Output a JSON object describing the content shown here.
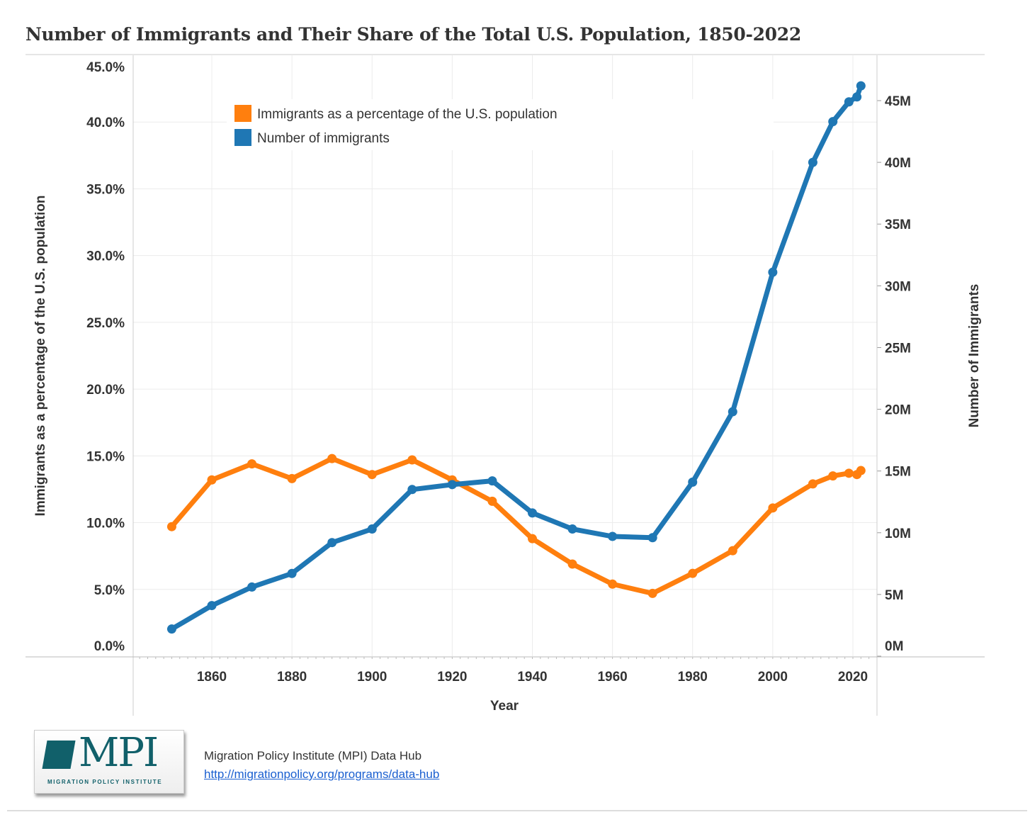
{
  "chart_data": {
    "type": "line",
    "title": "Number of Immigrants and Their Share of the Total U.S. Population, 1850-2022",
    "xlabel": "Year",
    "ylabel_left": "Immigrants as a percentage of the U.S. population",
    "ylabel_right": "Number of Immigrants",
    "x": [
      1850,
      1860,
      1870,
      1880,
      1890,
      1900,
      1910,
      1920,
      1930,
      1940,
      1950,
      1960,
      1970,
      1980,
      1990,
      2000,
      2010,
      2015,
      2019,
      2021,
      2022
    ],
    "series": [
      {
        "name": "Immigrants as a percentage of the U.S. population",
        "axis": "left",
        "color": "#ff7f0e",
        "values": [
          9.7,
          13.2,
          14.4,
          13.3,
          14.8,
          13.6,
          14.7,
          13.2,
          11.6,
          8.8,
          6.9,
          5.4,
          4.7,
          6.2,
          7.9,
          11.1,
          12.9,
          13.5,
          13.7,
          13.6,
          13.9
        ]
      },
      {
        "name": "Number of immigrants",
        "axis": "right",
        "color": "#1f77b4",
        "values": [
          2.2,
          4.1,
          5.6,
          6.7,
          9.2,
          10.3,
          13.5,
          13.9,
          14.2,
          11.6,
          10.3,
          9.7,
          9.6,
          14.1,
          19.8,
          31.1,
          40.0,
          43.3,
          44.9,
          45.3,
          46.2
        ]
      }
    ],
    "x_ticks": [
      "1860",
      "1880",
      "1900",
      "1920",
      "1940",
      "1960",
      "1980",
      "2000",
      "2020"
    ],
    "y_left_ticks": [
      "0.0%",
      "5.0%",
      "10.0%",
      "15.0%",
      "20.0%",
      "25.0%",
      "30.0%",
      "35.0%",
      "40.0%",
      "45.0%"
    ],
    "y_right_ticks": [
      "0M",
      "5M",
      "10M",
      "15M",
      "20M",
      "25M",
      "30M",
      "35M",
      "40M",
      "45M"
    ],
    "xlim": [
      1840,
      2025
    ],
    "ylim_left": [
      0,
      45
    ],
    "ylim_right": [
      0,
      48.7
    ],
    "grid": true,
    "legend_position": "top-left"
  },
  "footer": {
    "logo_text": "MPI",
    "logo_subtext": "MIGRATION POLICY INSTITUTE",
    "source": "Migration Policy Institute (MPI) Data Hub",
    "link": "http://migrationpolicy.org/programs/data-hub"
  }
}
